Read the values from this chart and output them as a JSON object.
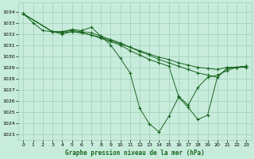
{
  "title": "Graphe pression niveau de la mer (hPa)",
  "bg_color": "#c8ecdc",
  "grid_color": "#9ecfb8",
  "line_color": "#1a6620",
  "xlim": [
    -0.5,
    23.5
  ],
  "ylim": [
    1022.5,
    1034.8
  ],
  "xtick_labels": [
    "0",
    "1",
    "2",
    "3",
    "4",
    "5",
    "6",
    "7",
    "8",
    "9",
    "10",
    "11",
    "12",
    "13",
    "14",
    "15",
    "16",
    "17",
    "18",
    "19",
    "20",
    "21",
    "22",
    "23"
  ],
  "xticks": [
    0,
    1,
    2,
    3,
    4,
    5,
    6,
    7,
    8,
    9,
    10,
    11,
    12,
    13,
    14,
    15,
    16,
    17,
    18,
    19,
    20,
    21,
    22,
    23
  ],
  "yticks": [
    1023,
    1024,
    1025,
    1026,
    1027,
    1028,
    1029,
    1030,
    1031,
    1032,
    1033,
    1034
  ],
  "series": [
    {
      "x": [
        0,
        1,
        2,
        3,
        4,
        5,
        6,
        7,
        8,
        9,
        10,
        11,
        12,
        13,
        14,
        15,
        16,
        17,
        18,
        19,
        20,
        21,
        22,
        23
      ],
      "y": [
        1033.8,
        1033.0,
        1032.3,
        1032.2,
        1032.2,
        1032.3,
        1032.2,
        1032.1,
        1031.8,
        1031.5,
        1031.2,
        1030.8,
        1030.5,
        1030.2,
        1029.9,
        1029.7,
        1029.4,
        1029.2,
        1029.0,
        1028.9,
        1028.8,
        1029.0,
        1029.0,
        1029.0
      ]
    },
    {
      "x": [
        0,
        3,
        4,
        5,
        6,
        7,
        8,
        9,
        10,
        11,
        12,
        13,
        14,
        15,
        16,
        17,
        18,
        19,
        20,
        21,
        22,
        23
      ],
      "y": [
        1033.8,
        1032.2,
        1032.1,
        1032.2,
        1032.1,
        1031.9,
        1031.7,
        1031.4,
        1031.1,
        1030.8,
        1030.4,
        1030.1,
        1029.7,
        1029.4,
        1029.1,
        1028.8,
        1028.5,
        1028.3,
        1028.1,
        1028.9,
        1029.0,
        1029.1
      ]
    },
    {
      "x": [
        0,
        3,
        4,
        5,
        6,
        7,
        8,
        9,
        10,
        11,
        12,
        13,
        14,
        15,
        16,
        17,
        18,
        19,
        20,
        21,
        22,
        23
      ],
      "y": [
        1033.8,
        1032.2,
        1032.0,
        1032.2,
        1032.1,
        1031.9,
        1031.6,
        1031.3,
        1031.0,
        1030.5,
        1030.1,
        1029.7,
        1029.4,
        1029.1,
        1026.4,
        1025.6,
        1027.2,
        1028.1,
        1028.3,
        1028.7,
        1029.0,
        1029.1
      ]
    },
    {
      "x": [
        0,
        3,
        4,
        5,
        6,
        7,
        9,
        10,
        11,
        12,
        13,
        14,
        15,
        16,
        17,
        18,
        19,
        20,
        21,
        22,
        23
      ],
      "y": [
        1033.8,
        1032.2,
        1032.2,
        1032.4,
        1032.3,
        1032.6,
        1031.0,
        1029.8,
        1028.5,
        1025.3,
        1023.9,
        1023.2,
        1024.6,
        1026.3,
        1025.4,
        1024.3,
        1024.7,
        1028.1,
        1028.9,
        1029.0,
        1029.1
      ]
    }
  ]
}
